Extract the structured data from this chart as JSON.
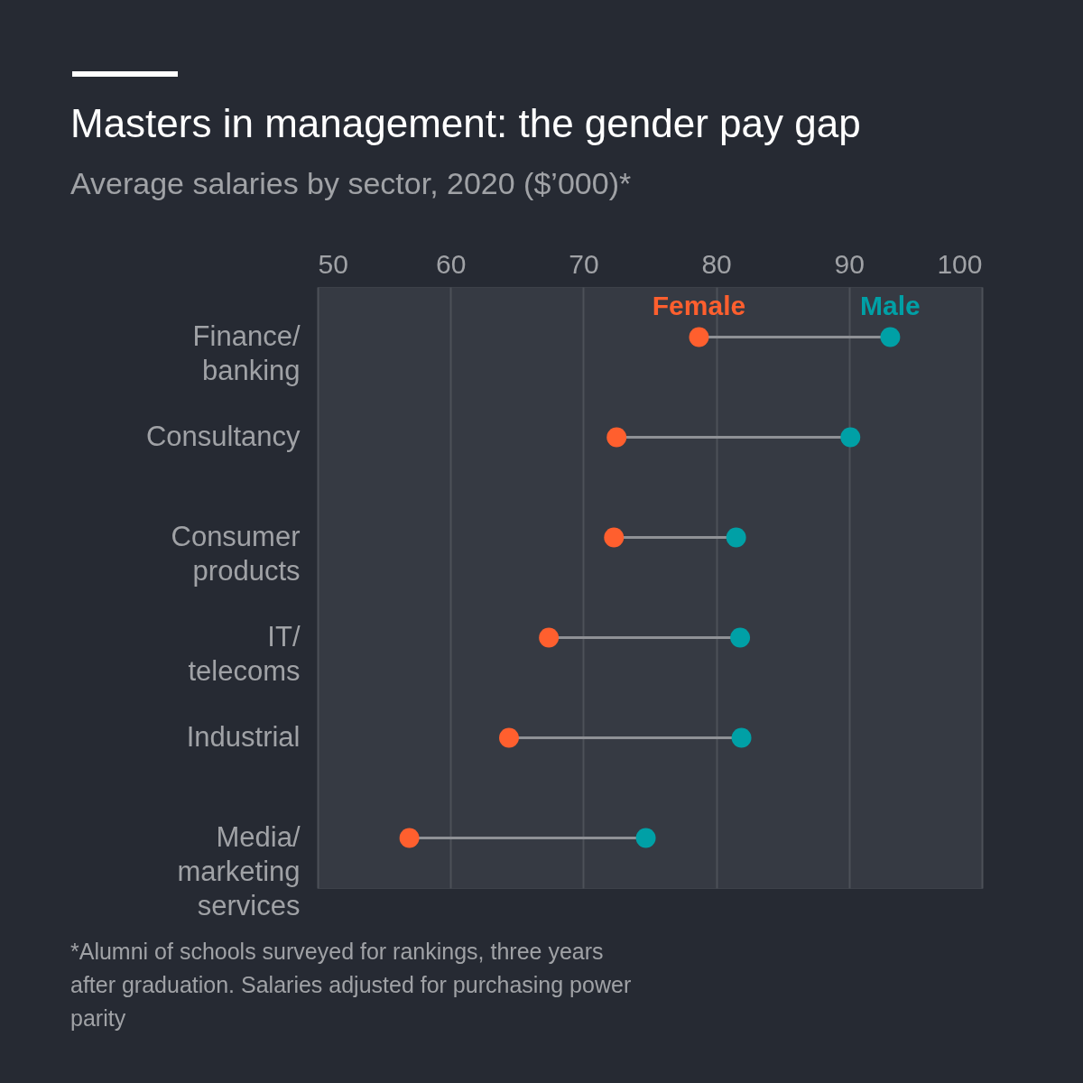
{
  "chart_data": {
    "type": "scatter",
    "orientation": "horizontal",
    "title": "Masters in management: the gender pay gap",
    "subtitle": "Average salaries by sector, 2020 ($’000)*",
    "categories": [
      "Finance/ banking",
      "Consultancy",
      "Consumer products",
      "IT/ telecoms",
      "Industrial",
      "Media/ marketing services"
    ],
    "series": [
      {
        "name": "Female",
        "color": "#ff5f2e",
        "values": [
          78.7,
          72.5,
          72.3,
          67.4,
          64.4,
          56.9
        ]
      },
      {
        "name": "Male",
        "color": "#00a0a6",
        "values": [
          93.1,
          90.1,
          81.5,
          81.8,
          81.9,
          74.7
        ]
      }
    ],
    "xlim": [
      50,
      100
    ],
    "xticks": [
      50,
      60,
      70,
      80,
      90,
      100
    ],
    "grid": "x",
    "marker": "circle",
    "annotations": [
      "*Alumni of schools surveyed for rankings, three years after graduation. Salaries adjusted for purchasing power parity"
    ]
  }
}
